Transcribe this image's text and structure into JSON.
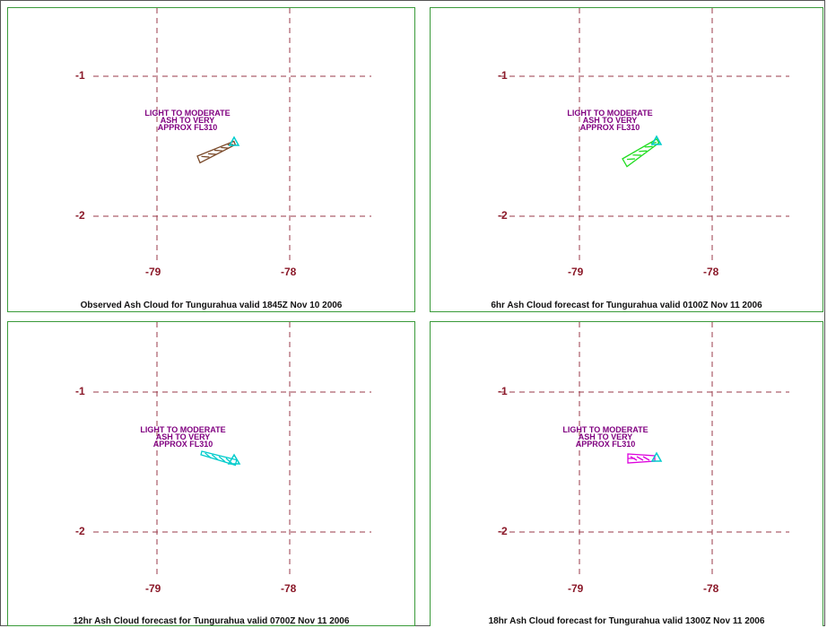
{
  "panels": [
    {
      "caption": "Observed Ash Cloud for Tungurahua valid 1845Z Nov 10 2006",
      "lat_labels": [
        "-1",
        "-2"
      ],
      "lon_labels": [
        "-79",
        "-78"
      ],
      "ash_text": [
        "LIGHT TO MODERATE",
        "ASH TO VERY",
        "APPROX FL310"
      ],
      "cloud_color": "#7a4a2a",
      "volcano_symbol": "triangle"
    },
    {
      "caption": "6hr Ash Cloud forecast for Tungurahua valid 0100Z Nov 11 2006",
      "lat_labels": [
        "-1",
        "-2"
      ],
      "lon_labels": [
        "-79",
        "-78"
      ],
      "ash_text": [
        "LIGHT TO MODERATE",
        "ASH TO VERY",
        "APPROX FL310"
      ],
      "cloud_color": "#22dd22",
      "volcano_symbol": "triangle"
    },
    {
      "caption": "12hr Ash Cloud forecast for Tungurahua valid 0700Z Nov 11 2006",
      "lat_labels": [
        "-1",
        "-2"
      ],
      "lon_labels": [
        "-79",
        "-78"
      ],
      "ash_text": [
        "LIGHT TO MODERATE",
        "ASH TO VERY",
        "APPROX FL310"
      ],
      "cloud_color": "#00cccc",
      "volcano_symbol": "triangle"
    },
    {
      "caption": "18hr Ash Cloud forecast for Tungurahua valid 1300Z Nov 11 2006",
      "lat_labels": [
        "-1",
        "-2"
      ],
      "lon_labels": [
        "-79",
        "-78"
      ],
      "ash_text": [
        "LIGHT TO MODERATE",
        "ASH TO VERY",
        "APPROX FL310"
      ],
      "cloud_color": "#dd00dd",
      "volcano_symbol": "triangle"
    }
  ],
  "colors": {
    "grid": "#9a3a4a",
    "labels": "#8b1a2a",
    "ash_text": "#800080",
    "volcano": "#00cccc",
    "panel_border": "#3a9a3a"
  }
}
